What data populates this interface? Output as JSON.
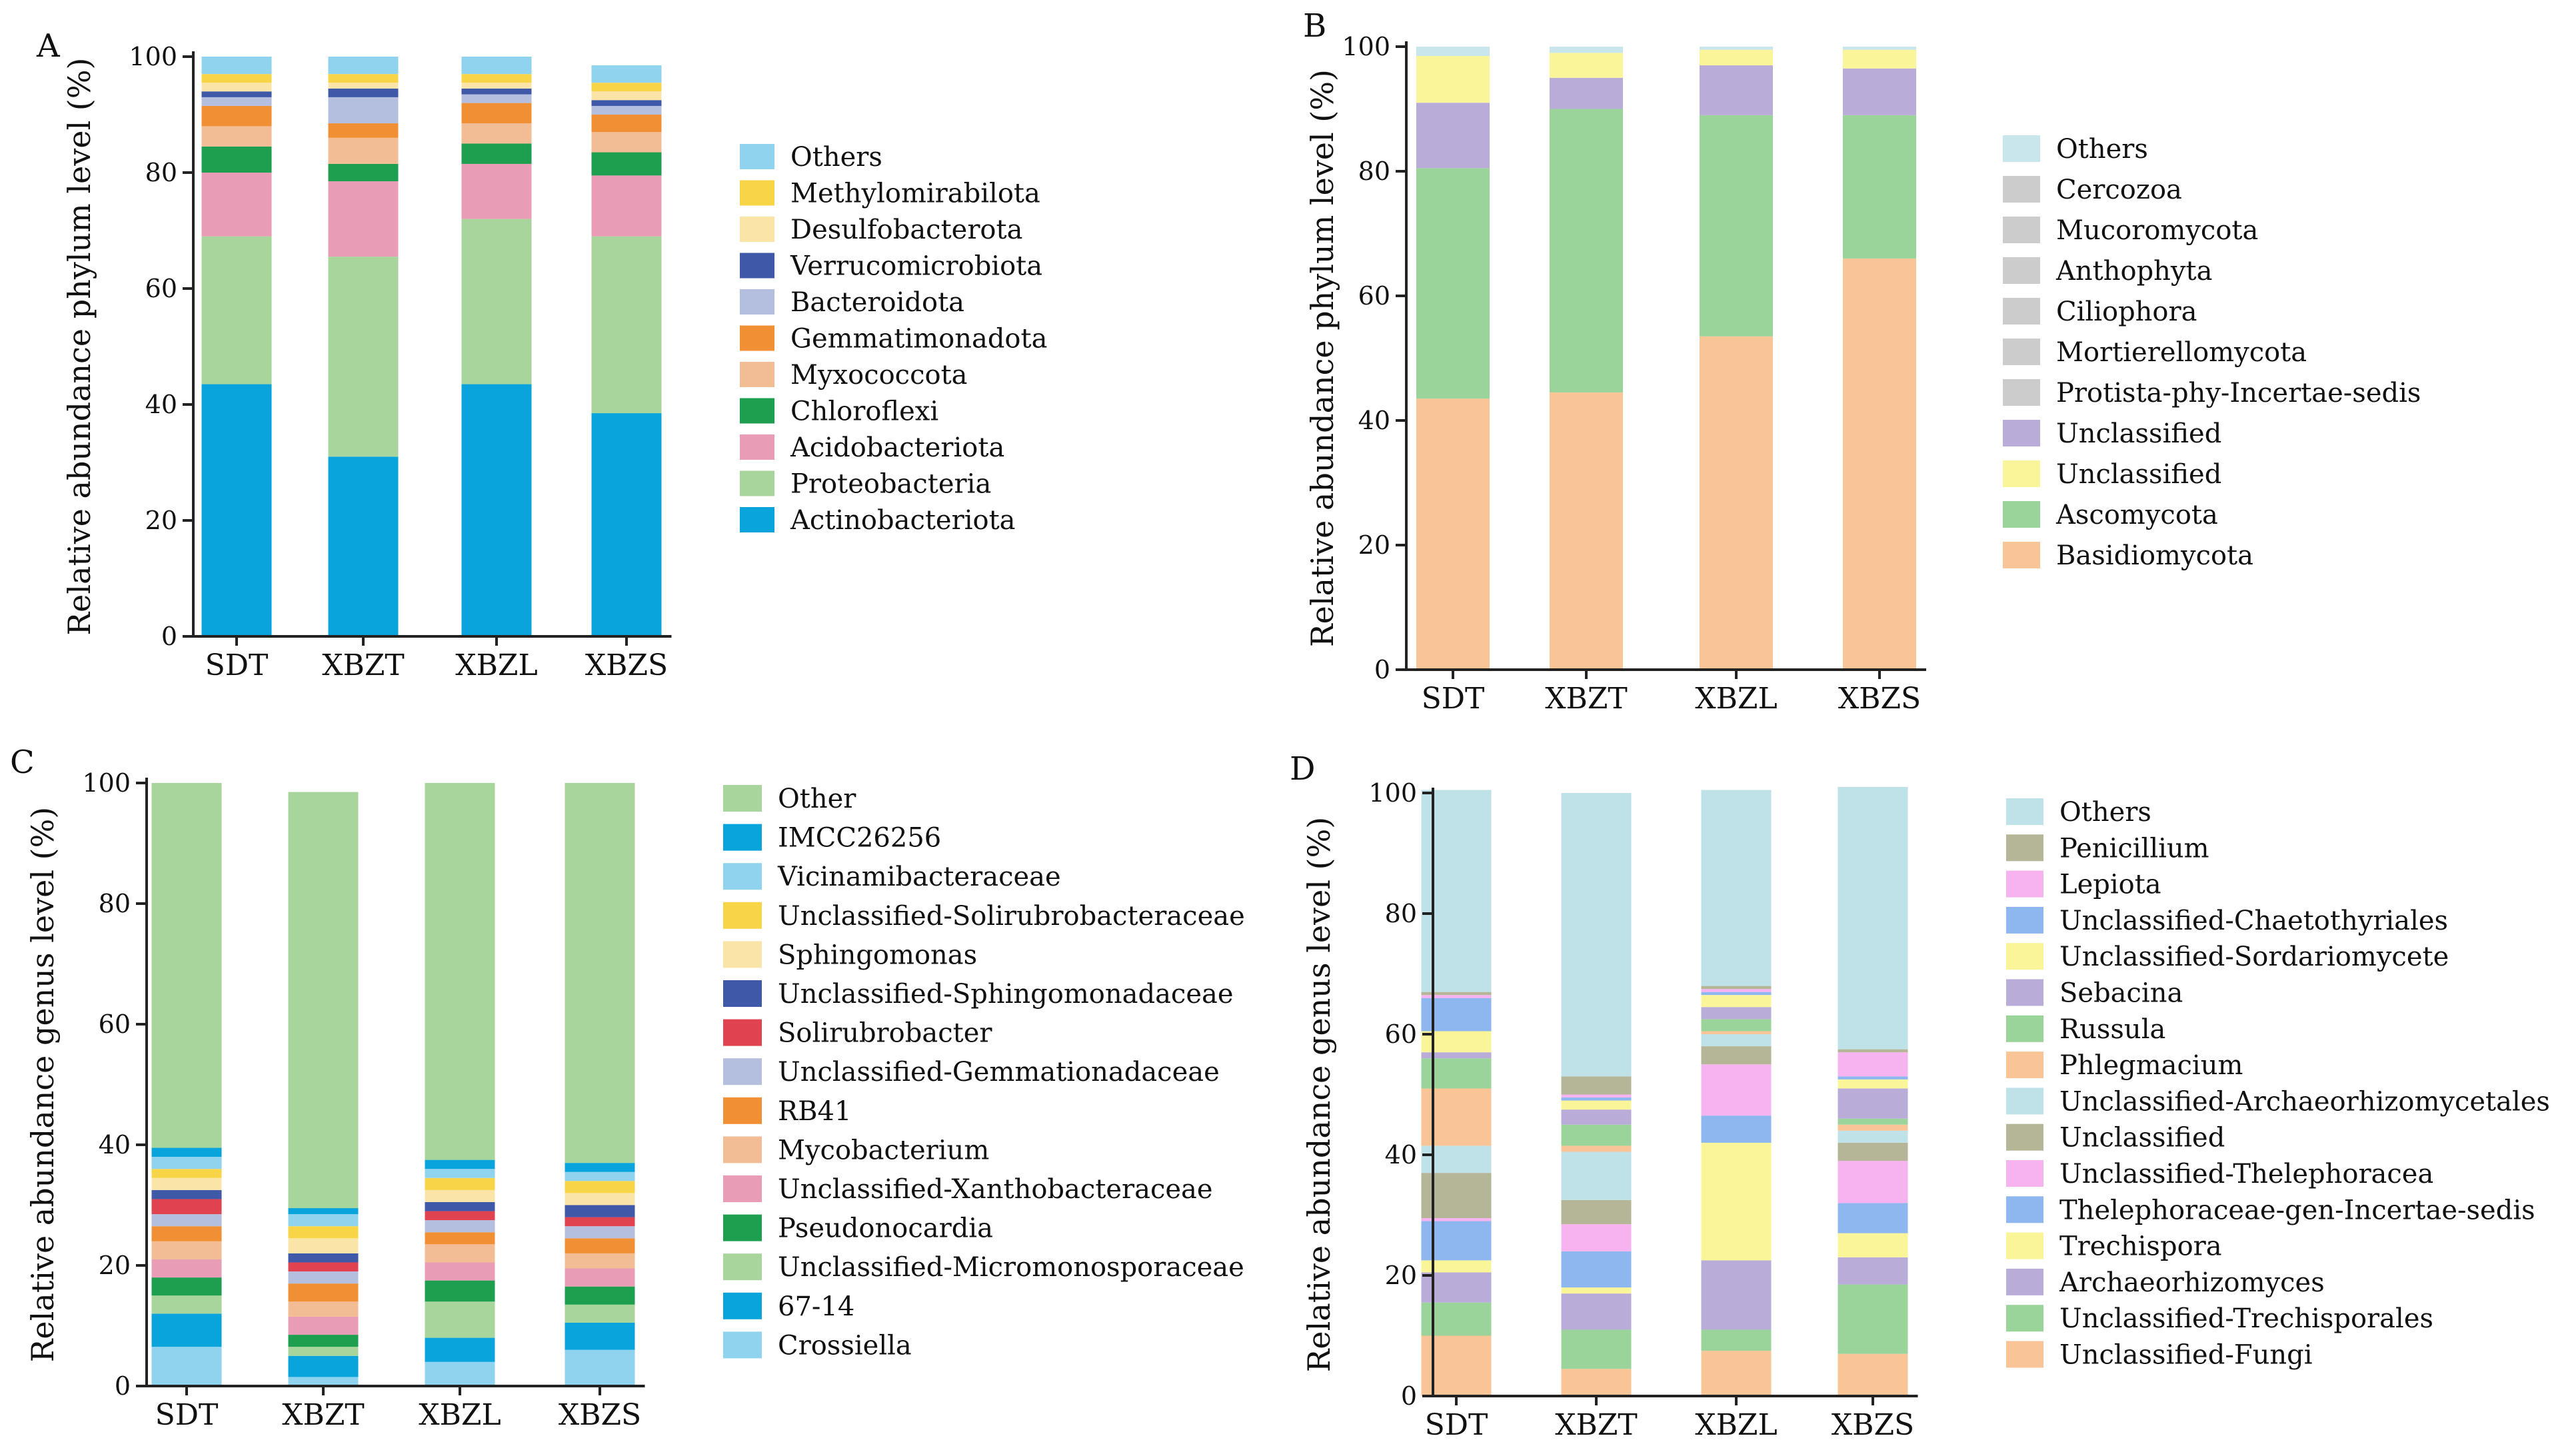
{
  "chart_data": [
    {
      "panel": "A",
      "type": "bar",
      "stacked": true,
      "ylabel": "Relative abundance phylum level (%)",
      "ylim": [
        0,
        100
      ],
      "yticks": [
        0,
        20,
        40,
        60,
        80,
        100
      ],
      "categories": [
        "SDT",
        "XBZT",
        "XBZL",
        "XBZS"
      ],
      "legend_entries": [
        "Others",
        "Methylomirabilota",
        "Desulfobacterota",
        "Verrucomicrobiota",
        "Bacteroidota",
        "Gemmatimonadota",
        "Myxococcota",
        "Chloroflexi",
        "Acidobacteriota",
        "Proteobacteria",
        "Actinobacteriota"
      ],
      "series": [
        {
          "name": "Actinobacteriota",
          "color": "#0aa4dc",
          "values": [
            43.5,
            31,
            43.5,
            38.5
          ]
        },
        {
          "name": "Proteobacteria",
          "color": "#a8d59c",
          "values": [
            25.5,
            34.5,
            28.5,
            30.5
          ]
        },
        {
          "name": "Acidobacteriota",
          "color": "#e89cb5",
          "values": [
            11,
            13,
            9.5,
            10.5
          ]
        },
        {
          "name": "Chloroflexi",
          "color": "#1d9f4f",
          "values": [
            4.5,
            3,
            3.5,
            4
          ]
        },
        {
          "name": "Myxococcota",
          "color": "#f2bc95",
          "values": [
            3.5,
            4.5,
            3.5,
            3.5
          ]
        },
        {
          "name": "Gemmatimonadota",
          "color": "#f18f34",
          "values": [
            3.5,
            2.5,
            3.5,
            3
          ]
        },
        {
          "name": "Bacteroidota",
          "color": "#b4bfdf",
          "values": [
            1.5,
            4.5,
            1.5,
            1.5
          ]
        },
        {
          "name": "Verrucomicrobiota",
          "color": "#3f58a8",
          "values": [
            1,
            1.5,
            1,
            1
          ]
        },
        {
          "name": "Desulfobacterota",
          "color": "#fbe4a8",
          "values": [
            1.5,
            1,
            1,
            1.5
          ]
        },
        {
          "name": "Methylomirabilota",
          "color": "#f8d547",
          "values": [
            1.5,
            1.5,
            1.5,
            1.5
          ]
        },
        {
          "name": "Others",
          "color": "#8fd3ee",
          "values": [
            3,
            3,
            3,
            3
          ]
        }
      ]
    },
    {
      "panel": "B",
      "type": "bar",
      "stacked": true,
      "ylabel": "Relative abundance phylum level (%)",
      "ylim": [
        0,
        100
      ],
      "yticks": [
        0,
        20,
        40,
        60,
        80,
        100
      ],
      "categories": [
        "SDT",
        "XBZT",
        "XBZL",
        "XBZS"
      ],
      "legend_entries": [
        "Others",
        "Cercozoa",
        "Mucoromycota",
        "Anthophyta",
        "Ciliophora",
        "Mortierellomycota",
        "Protista-phy-Incertae-sedis",
        "Unclassified",
        "Unclassified",
        "Ascomycota",
        "Basidiomycota"
      ],
      "series": [
        {
          "name": "Basidiomycota",
          "color": "#f9c596",
          "values": [
            43.5,
            44.5,
            53.5,
            66
          ]
        },
        {
          "name": "Ascomycota",
          "color": "#9bd49b",
          "values": [
            37,
            45.5,
            35.5,
            23
          ]
        },
        {
          "name": "Unclassified",
          "color": "#b9acd8",
          "values": [
            10.5,
            5,
            8,
            7.5
          ]
        },
        {
          "name": "Unclassified",
          "color": "#fbf59a",
          "values": [
            7.5,
            4,
            2.5,
            3
          ]
        },
        {
          "name": "Others",
          "color": "#c9e6ec",
          "values": [
            1.5,
            1,
            0.5,
            0.5
          ]
        }
      ]
    },
    {
      "panel": "C",
      "type": "bar",
      "stacked": true,
      "ylabel": "Relative abundance genus level (%)",
      "ylim": [
        0,
        100
      ],
      "yticks": [
        0,
        20,
        40,
        60,
        80,
        100
      ],
      "categories": [
        "SDT",
        "XBZT",
        "XBZL",
        "XBZS"
      ],
      "legend_entries": [
        "Other",
        "IMCC26256",
        "Vicinamibacteraceae",
        "Unclassified-Solirubrobacteraceae",
        "Sphingomonas",
        "Unclassified-Sphingomonadaceae",
        "Solirubrobacter",
        "Unclassified-Gemmationadaceae",
        "RB41",
        "Mycobacterium",
        "Unclassified-Xanthobacteraceae",
        "Pseudonocardia",
        "Unclassified-Micromonosporaceae",
        "67-14",
        "Crossiella"
      ],
      "series": [
        {
          "name": "Crossiella",
          "color": "#8fd3ee",
          "values": [
            6.5,
            1.5,
            4,
            6
          ]
        },
        {
          "name": "67-14",
          "color": "#0aa4dc",
          "values": [
            5.5,
            3.5,
            4,
            4.5
          ]
        },
        {
          "name": "Unclassified-Micromonosporaceae",
          "color": "#a8d59c",
          "values": [
            3,
            1.5,
            6,
            3
          ]
        },
        {
          "name": "Pseudonocardia",
          "color": "#1d9f4f",
          "values": [
            3,
            2,
            3.5,
            3
          ]
        },
        {
          "name": "Unclassified-Xanthobacteraceae",
          "color": "#e89cb5",
          "values": [
            3,
            3,
            3,
            3
          ]
        },
        {
          "name": "Mycobacterium",
          "color": "#f2bc95",
          "values": [
            3,
            2.5,
            3,
            2.5
          ]
        },
        {
          "name": "RB41",
          "color": "#f18f34",
          "values": [
            2.5,
            3,
            2,
            2.5
          ]
        },
        {
          "name": "Unclassified-Gemmationadaceae",
          "color": "#b4bfdf",
          "values": [
            2,
            2,
            2,
            2
          ]
        },
        {
          "name": "Solirubrobacter",
          "color": "#e0424f",
          "values": [
            2.5,
            1.5,
            1.5,
            1.5
          ]
        },
        {
          "name": "Unclassified-Sphingomonadaceae",
          "color": "#3f58a8",
          "values": [
            1.5,
            1.5,
            1.5,
            2
          ]
        },
        {
          "name": "Sphingomonas",
          "color": "#fbe4a8",
          "values": [
            2,
            2.5,
            2,
            2
          ]
        },
        {
          "name": "Unclassified-Solirubrobacteraceae",
          "color": "#f8d547",
          "values": [
            1.5,
            2,
            2,
            2
          ]
        },
        {
          "name": "Vicinamibacteraceae",
          "color": "#8fd3ee",
          "values": [
            2,
            2,
            1.5,
            1.5
          ]
        },
        {
          "name": "IMCC26256",
          "color": "#0aa4dc",
          "values": [
            1.5,
            1,
            1.5,
            1.5
          ]
        },
        {
          "name": "Other",
          "color": "#a8d59c",
          "values": [
            60.5,
            69,
            62.5,
            63
          ]
        }
      ]
    },
    {
      "panel": "D",
      "type": "bar",
      "stacked": true,
      "ylabel": "Relative abundance genus level (%)",
      "ylim": [
        0,
        100
      ],
      "yticks": [
        0,
        20,
        40,
        60,
        80,
        100
      ],
      "categories": [
        "SDT",
        "XBZT",
        "XBZL",
        "XBZS"
      ],
      "legend_entries": [
        "Others",
        "Penicillium",
        "Lepiota",
        "Unclassified-Chaetothyriales",
        "Unclassified-Sordariomycete",
        "Sebacina",
        "Russula",
        "Phlegmacium",
        "Unclassified-Archaeorhizomycetales",
        "Unclassified",
        "Unclassified-Thelephoracea",
        "Thelephoraceae-gen-Incertae-sedis",
        "Trechispora",
        "Archaeorhizomyces",
        "Unclassified-Trechisporales",
        "Unclassified-Fungi"
      ],
      "series": [
        {
          "name": "Unclassified-Fungi",
          "color": "#f9c596",
          "values": [
            10,
            4.5,
            7.5,
            7
          ]
        },
        {
          "name": "Unclassified-Trechisporales",
          "color": "#9bd49b",
          "values": [
            5.5,
            6.5,
            3.5,
            11.5
          ]
        },
        {
          "name": "Archaeorhizomyces",
          "color": "#b9acd8",
          "values": [
            5,
            6,
            11.5,
            4.5
          ]
        },
        {
          "name": "Trechispora",
          "color": "#fbf59a",
          "values": [
            2,
            1,
            19.5,
            4
          ]
        },
        {
          "name": "Thelephoraceae-gen-Incertae-sedis",
          "color": "#8db7ee",
          "values": [
            6.5,
            6,
            4.5,
            5
          ]
        },
        {
          "name": "Unclassified-Thelephoracea",
          "color": "#f7b3f0",
          "values": [
            0.5,
            4.5,
            8.5,
            7
          ]
        },
        {
          "name": "Unclassified",
          "color": "#b5b597",
          "values": [
            7.5,
            4,
            3,
            3
          ]
        },
        {
          "name": "Unclassified-Archaeorhizomycetales",
          "color": "#bfe2e8",
          "values": [
            4.5,
            8,
            2,
            2
          ]
        },
        {
          "name": "Phlegmacium",
          "color": "#f9c596",
          "values": [
            9.5,
            1,
            0.5,
            1
          ]
        },
        {
          "name": "Russula",
          "color": "#9bd49b",
          "values": [
            5,
            3.5,
            2,
            1
          ]
        },
        {
          "name": "Sebacina",
          "color": "#b9acd8",
          "values": [
            1,
            2.5,
            2,
            5
          ]
        },
        {
          "name": "Unclassified-Sordariomycete",
          "color": "#fbf59a",
          "values": [
            3.5,
            1.5,
            2,
            1.5
          ]
        },
        {
          "name": "Unclassified-Chaetothyriales",
          "color": "#8db7ee",
          "values": [
            5.5,
            0.5,
            0.5,
            0.5
          ]
        },
        {
          "name": "Lepiota",
          "color": "#f7b3f0",
          "values": [
            0.5,
            0.5,
            0.5,
            4
          ]
        },
        {
          "name": "Penicillium",
          "color": "#b5b597",
          "values": [
            0.5,
            3,
            0.5,
            0.5
          ]
        },
        {
          "name": "Others",
          "color": "#bfe2e8",
          "values": [
            33.5,
            47,
            32.5,
            43.5
          ]
        }
      ]
    }
  ]
}
